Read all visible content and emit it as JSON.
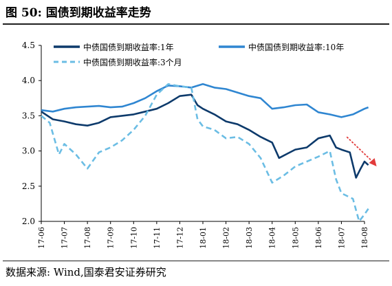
{
  "figure": {
    "title": "图 50:  国债到期收益率走势",
    "source": "数据来源:  Wind,国泰君安证券研究"
  },
  "colors": {
    "y1": "#0d3a6b",
    "y10": "#2f86d1",
    "m3": "#6bbde4",
    "arrow": "#e23b3b"
  },
  "chart_data": {
    "type": "line",
    "title": "",
    "xlabel": "",
    "ylabel": "",
    "ylim": [
      2.0,
      4.5
    ],
    "yticks": [
      "2.0",
      "2.5",
      "3.0",
      "3.5",
      "4.0",
      "4.5"
    ],
    "xticks": [
      "17-06",
      "17-07",
      "17-08",
      "17-09",
      "17-10",
      "17-11",
      "17-12",
      "18-01",
      "18-02",
      "18-03",
      "18-04",
      "18-05",
      "18-06",
      "18-07",
      "18-08"
    ],
    "legend": "top",
    "grid": false,
    "series": [
      {
        "name": "中债国债到期收益率:1年",
        "style": "solid",
        "points": [
          [
            "17-06",
            3.56
          ],
          [
            "17-06-16",
            3.45
          ],
          [
            "17-07",
            3.42
          ],
          [
            "17-07-16",
            3.38
          ],
          [
            "17-08",
            3.36
          ],
          [
            "17-08-16",
            3.4
          ],
          [
            "17-09",
            3.48
          ],
          [
            "17-09-16",
            3.5
          ],
          [
            "17-10",
            3.52
          ],
          [
            "17-10-16",
            3.56
          ],
          [
            "17-11",
            3.6
          ],
          [
            "17-11-16",
            3.68
          ],
          [
            "17-12",
            3.78
          ],
          [
            "17-12-16",
            3.8
          ],
          [
            "17-12-24",
            3.65
          ],
          [
            "18-01",
            3.6
          ],
          [
            "18-01-16",
            3.52
          ],
          [
            "18-02",
            3.42
          ],
          [
            "18-02-16",
            3.38
          ],
          [
            "18-03",
            3.3
          ],
          [
            "18-03-16",
            3.2
          ],
          [
            "18-04",
            3.12
          ],
          [
            "18-04-10",
            2.9
          ],
          [
            "18-04-24",
            2.98
          ],
          [
            "18-05",
            3.02
          ],
          [
            "18-05-16",
            3.05
          ],
          [
            "18-06",
            3.18
          ],
          [
            "18-06-16",
            3.22
          ],
          [
            "18-06-24",
            3.05
          ],
          [
            "18-07",
            3.02
          ],
          [
            "18-07-12",
            2.98
          ],
          [
            "18-07-20",
            2.62
          ],
          [
            "18-07-26",
            2.75
          ],
          [
            "18-08",
            2.85
          ],
          [
            "18-08-06",
            2.8
          ]
        ]
      },
      {
        "name": "中债国债到期收益率:10年",
        "style": "solid",
        "points": [
          [
            "17-06",
            3.58
          ],
          [
            "17-06-16",
            3.56
          ],
          [
            "17-07",
            3.6
          ],
          [
            "17-07-16",
            3.62
          ],
          [
            "17-08",
            3.63
          ],
          [
            "17-08-16",
            3.64
          ],
          [
            "17-09",
            3.62
          ],
          [
            "17-09-16",
            3.63
          ],
          [
            "17-10",
            3.68
          ],
          [
            "17-10-16",
            3.75
          ],
          [
            "17-11",
            3.85
          ],
          [
            "17-11-16",
            3.93
          ],
          [
            "17-12",
            3.92
          ],
          [
            "17-12-16",
            3.9
          ],
          [
            "18-01",
            3.95
          ],
          [
            "18-01-16",
            3.9
          ],
          [
            "18-02",
            3.88
          ],
          [
            "18-02-16",
            3.83
          ],
          [
            "18-03",
            3.78
          ],
          [
            "18-03-16",
            3.75
          ],
          [
            "18-04",
            3.6
          ],
          [
            "18-04-16",
            3.62
          ],
          [
            "18-05",
            3.65
          ],
          [
            "18-05-16",
            3.66
          ],
          [
            "18-06",
            3.55
          ],
          [
            "18-06-16",
            3.52
          ],
          [
            "18-07",
            3.48
          ],
          [
            "18-07-16",
            3.52
          ],
          [
            "18-08",
            3.6
          ],
          [
            "18-08-06",
            3.62
          ]
        ]
      },
      {
        "name": "中债国债到期收益率:3个月",
        "style": "dashed",
        "points": [
          [
            "17-06",
            3.5
          ],
          [
            "17-06-12",
            3.4
          ],
          [
            "17-06-24",
            2.95
          ],
          [
            "17-07",
            3.1
          ],
          [
            "17-07-16",
            2.95
          ],
          [
            "17-08",
            2.75
          ],
          [
            "17-08-16",
            2.98
          ],
          [
            "17-09",
            3.05
          ],
          [
            "17-09-16",
            3.15
          ],
          [
            "17-10",
            3.3
          ],
          [
            "17-10-16",
            3.5
          ],
          [
            "17-11",
            3.8
          ],
          [
            "17-11-16",
            3.95
          ],
          [
            "17-12",
            3.92
          ],
          [
            "17-12-16",
            3.9
          ],
          [
            "17-12-24",
            3.45
          ],
          [
            "18-01",
            3.35
          ],
          [
            "18-01-16",
            3.3
          ],
          [
            "18-02",
            3.18
          ],
          [
            "18-02-16",
            3.2
          ],
          [
            "18-03",
            3.1
          ],
          [
            "18-03-16",
            2.9
          ],
          [
            "18-04",
            2.55
          ],
          [
            "18-04-16",
            2.65
          ],
          [
            "18-05",
            2.78
          ],
          [
            "18-05-16",
            2.85
          ],
          [
            "18-06",
            2.92
          ],
          [
            "18-06-16",
            3.0
          ],
          [
            "18-06-24",
            2.6
          ],
          [
            "18-07",
            2.4
          ],
          [
            "18-07-16",
            2.32
          ],
          [
            "18-07-24",
            2.0
          ],
          [
            "18-08",
            2.1
          ],
          [
            "18-08-06",
            2.18
          ]
        ]
      }
    ]
  }
}
